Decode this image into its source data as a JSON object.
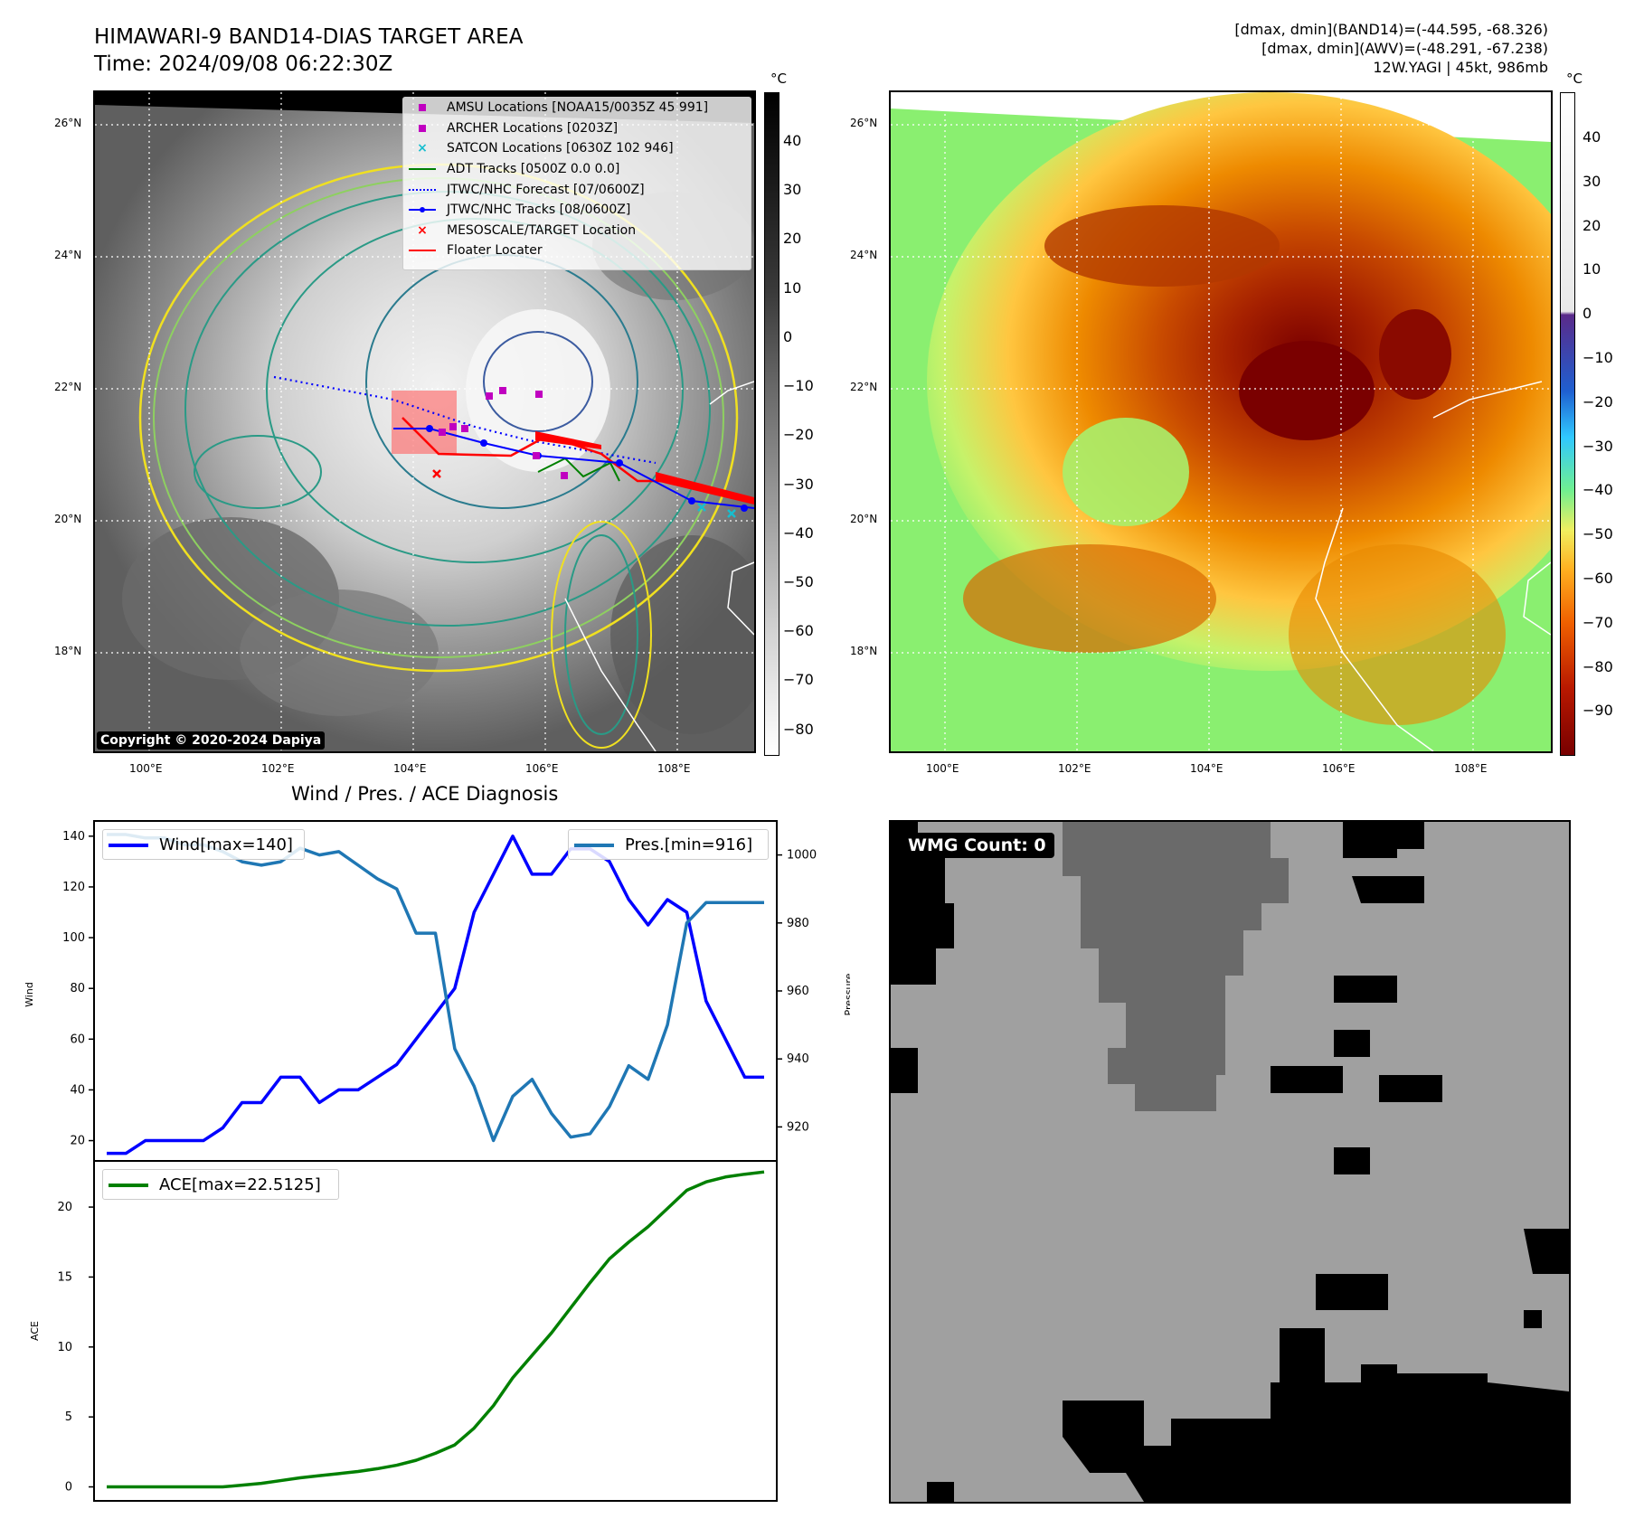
{
  "header": {
    "title": "HIMAWARI-9 BAND14-DIAS TARGET AREA",
    "time": "Time: 2024/09/08 06:22:30Z",
    "stats_line1": "[dmax, dmin](BAND14)=(-44.595, -68.326)",
    "stats_line2": "[dmax, dmin](AWV)=(-48.291, -67.238)",
    "stats_line3": "12W.YAGI | 45kt, 986mb"
  },
  "map": {
    "lon_labels": [
      "100°E",
      "102°E",
      "104°E",
      "106°E",
      "108°E"
    ],
    "lat_labels": [
      "26°N",
      "24°N",
      "22°N",
      "20°N",
      "18°N"
    ],
    "copyright": "Copyright © 2020-2024 Dapiya"
  },
  "legend": {
    "items": [
      {
        "label": "AMSU Locations [NOAA15/0035Z 45 991]",
        "marker": "square",
        "color": "#c000c0"
      },
      {
        "label": "ARCHER Locations [0203Z]",
        "marker": "square",
        "color": "#c000c0"
      },
      {
        "label": "SATCON Locations [0630Z 102 946]",
        "marker": "x",
        "color": "#17becf"
      },
      {
        "label": "ADT Tracks [0500Z 0.0 0.0]",
        "marker": "line",
        "color": "#008000"
      },
      {
        "label": "JTWC/NHC Forecast [07/0600Z]",
        "marker": "dotted",
        "color": "#0000ff"
      },
      {
        "label": "JTWC/NHC Tracks [08/0600Z]",
        "marker": "linedot",
        "color": "#0000ff"
      },
      {
        "label": "MESOSCALE/TARGET Location",
        "marker": "x",
        "color": "#ff0000"
      },
      {
        "label": "Floater Locater",
        "marker": "line",
        "color": "#ff0000"
      }
    ]
  },
  "colorbar_gray": {
    "unit": "°C",
    "ticks": [
      "40",
      "30",
      "20",
      "10",
      "0",
      "−10",
      "−20",
      "−30",
      "−40",
      "−50",
      "−60",
      "−70",
      "−80"
    ]
  },
  "colorbar_awv": {
    "unit": "°C",
    "ticks": [
      "40",
      "30",
      "20",
      "10",
      "0",
      "−10",
      "−20",
      "−30",
      "−40",
      "−50",
      "−60",
      "−70",
      "−80",
      "−90"
    ]
  },
  "wind_pres": {
    "title": "Wind / Pres. / ACE Diagnosis",
    "wind_legend": "Wind[max=140]",
    "pres_legend": "Pres.[min=916]",
    "ylabel_left": "Wind",
    "ylabel_right": "Pressure",
    "left_ticks": [
      "140",
      "120",
      "100",
      "80",
      "60",
      "40",
      "20"
    ],
    "right_ticks": [
      "1000",
      "980",
      "960",
      "940",
      "920"
    ]
  },
  "ace": {
    "legend": "ACE[max=22.5125]",
    "ylabel": "ACE",
    "ticks": [
      "20",
      "15",
      "10",
      "5",
      "0"
    ]
  },
  "wmg": {
    "label": "WMG Count: 0"
  },
  "chart_data": [
    {
      "type": "line",
      "title": "Wind / Pres. / ACE Diagnosis",
      "ylabel": "Wind",
      "ylim": [
        12,
        146
      ],
      "series": [
        {
          "name": "Wind[max=140]",
          "color": "#0000ff",
          "values": [
            15,
            15,
            20,
            20,
            20,
            20,
            25,
            35,
            35,
            45,
            45,
            35,
            40,
            40,
            45,
            50,
            60,
            70,
            80,
            110,
            125,
            140,
            125,
            125,
            135,
            135,
            130,
            115,
            105,
            115,
            110,
            75,
            60,
            45,
            45
          ]
        }
      ]
    },
    {
      "type": "line",
      "ylabel": "Pressure",
      "ylim": [
        910,
        1010
      ],
      "series": [
        {
          "name": "Pres.[min=916]",
          "color": "#1f77b4",
          "values": [
            1006,
            1006,
            1005,
            1005,
            1003,
            1003,
            1001,
            998,
            997,
            998,
            1002,
            1000,
            1001,
            997,
            993,
            990,
            977,
            977,
            943,
            932,
            916,
            929,
            934,
            924,
            917,
            918,
            926,
            938,
            934,
            950,
            980,
            986,
            986,
            986,
            986
          ]
        }
      ]
    },
    {
      "type": "line",
      "ylabel": "ACE",
      "ylim": [
        -1,
        23.3
      ],
      "series": [
        {
          "name": "ACE[max=22.5125]",
          "color": "#008000",
          "values": [
            0,
            0,
            0,
            0,
            0,
            0,
            0,
            0.12,
            0.25,
            0.45,
            0.65,
            0.8,
            0.95,
            1.1,
            1.3,
            1.55,
            1.9,
            2.4,
            3.0,
            4.2,
            5.8,
            7.8,
            9.4,
            11.0,
            12.8,
            14.6,
            16.3,
            17.5,
            18.6,
            19.9,
            21.2,
            21.8,
            22.15,
            22.35,
            22.5125
          ]
        }
      ]
    }
  ]
}
